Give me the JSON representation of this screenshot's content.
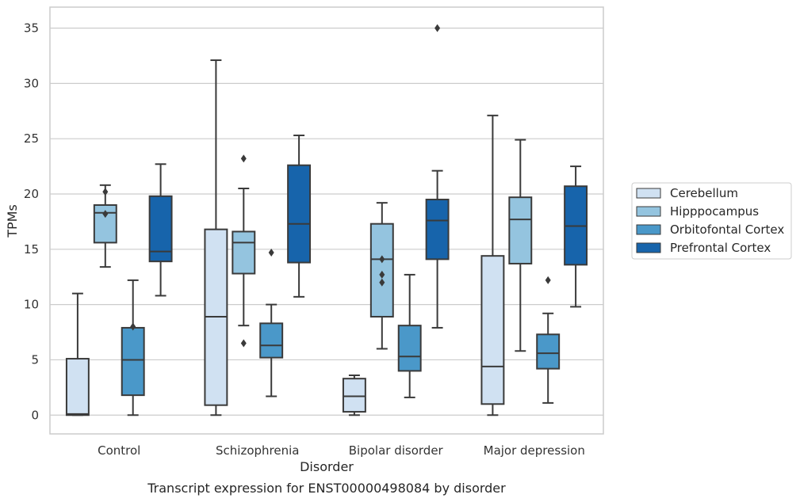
{
  "caption": "Transcript expression for ENST00000498084 by disorder",
  "chart_data": {
    "type": "box",
    "title": "",
    "xlabel": "Disorder",
    "ylabel": "TPMs",
    "ylim": [
      -1.7,
      36.9
    ],
    "yticks": [
      0,
      5,
      10,
      15,
      20,
      25,
      30,
      35
    ],
    "grid": "horizontal",
    "legend_position": "right",
    "categories": [
      "Control",
      "Schizophrenia",
      "Bipolar disorder",
      "Major depression"
    ],
    "series": [
      {
        "name": "Cerebellum",
        "color": "#d0e1f2",
        "boxes": [
          {
            "whisker_low": 0.0,
            "q1": 0.0,
            "median": 0.1,
            "q3": 5.1,
            "whisker_high": 11.0,
            "outliers": []
          },
          {
            "whisker_low": 0.0,
            "q1": 0.9,
            "median": 8.9,
            "q3": 16.8,
            "whisker_high": 32.1,
            "outliers": []
          },
          {
            "whisker_low": 0.0,
            "q1": 0.3,
            "median": 1.7,
            "q3": 3.3,
            "whisker_high": 3.6,
            "outliers": []
          },
          {
            "whisker_low": 0.0,
            "q1": 1.0,
            "median": 4.4,
            "q3": 14.4,
            "whisker_high": 27.1,
            "outliers": []
          }
        ]
      },
      {
        "name": "Hipppocampus",
        "color": "#94c4df",
        "boxes": [
          {
            "whisker_low": 13.4,
            "q1": 15.6,
            "median": 18.3,
            "q3": 19.0,
            "whisker_high": 20.8,
            "outliers": [
              20.2,
              18.2
            ]
          },
          {
            "whisker_low": 8.1,
            "q1": 12.8,
            "median": 15.6,
            "q3": 16.6,
            "whisker_high": 20.5,
            "outliers": [
              23.2,
              6.5
            ]
          },
          {
            "whisker_low": 6.0,
            "q1": 8.9,
            "median": 14.1,
            "q3": 17.3,
            "whisker_high": 19.2,
            "outliers": [
              14.1,
              12.7,
              12.0
            ]
          },
          {
            "whisker_low": 5.8,
            "q1": 13.7,
            "median": 17.7,
            "q3": 19.7,
            "whisker_high": 24.9,
            "outliers": []
          }
        ]
      },
      {
        "name": "Orbitofontal Cortex",
        "color": "#4a98c9",
        "boxes": [
          {
            "whisker_low": 0.0,
            "q1": 1.8,
            "median": 5.0,
            "q3": 7.9,
            "whisker_high": 12.2,
            "outliers": [
              8.0
            ]
          },
          {
            "whisker_low": 1.7,
            "q1": 5.2,
            "median": 6.3,
            "q3": 8.3,
            "whisker_high": 10.0,
            "outliers": [
              14.7
            ]
          },
          {
            "whisker_low": 1.6,
            "q1": 4.0,
            "median": 5.3,
            "q3": 8.1,
            "whisker_high": 12.7,
            "outliers": []
          },
          {
            "whisker_low": 1.1,
            "q1": 4.2,
            "median": 5.6,
            "q3": 7.3,
            "whisker_high": 9.2,
            "outliers": [
              12.2
            ]
          }
        ]
      },
      {
        "name": "Prefrontal Cortex",
        "color": "#1764ab",
        "boxes": [
          {
            "whisker_low": 10.8,
            "q1": 13.9,
            "median": 14.8,
            "q3": 19.8,
            "whisker_high": 22.7,
            "outliers": []
          },
          {
            "whisker_low": 10.7,
            "q1": 13.8,
            "median": 17.3,
            "q3": 22.6,
            "whisker_high": 25.3,
            "outliers": []
          },
          {
            "whisker_low": 7.9,
            "q1": 14.1,
            "median": 17.6,
            "q3": 19.5,
            "whisker_high": 22.1,
            "outliers": [
              35.0
            ]
          },
          {
            "whisker_low": 9.8,
            "q1": 13.6,
            "median": 17.1,
            "q3": 20.7,
            "whisker_high": 22.5,
            "outliers": []
          }
        ]
      }
    ]
  }
}
